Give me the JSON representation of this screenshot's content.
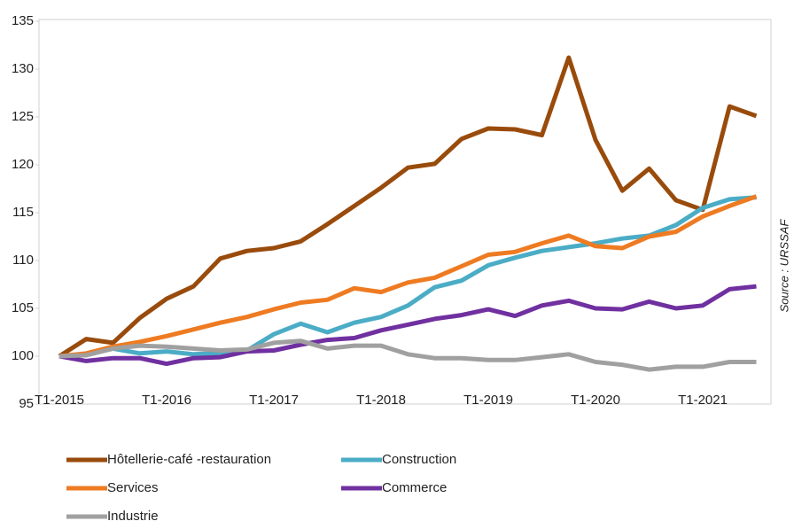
{
  "chart_data": {
    "type": "line",
    "categories": [
      "T1-2015",
      null,
      null,
      null,
      "T1-2016",
      null,
      null,
      null,
      "T1-2017",
      null,
      null,
      null,
      "T1-2018",
      null,
      null,
      null,
      "T1-2019",
      null,
      null,
      null,
      "T1-2020",
      null,
      null,
      null,
      "T1-2021",
      null,
      null
    ],
    "series": [
      {
        "name": "Hôtellerie-café -restauration",
        "color": "#994b0c",
        "values": [
          100,
          101.8,
          101.4,
          104,
          106,
          107.3,
          110.2,
          111,
          111.3,
          112,
          113.8,
          115.7,
          117.6,
          119.7,
          120.1,
          122.7,
          123.8,
          123.7,
          123.1,
          131.2,
          122.6,
          117.3,
          119.6,
          116.3,
          115.3,
          126.1,
          125.1
        ]
      },
      {
        "name": "Construction",
        "color": "#4bacc6",
        "values": [
          100,
          100.2,
          100.8,
          100.3,
          100.5,
          100.2,
          100.3,
          100.6,
          102.3,
          103.4,
          102.5,
          103.5,
          104.1,
          105.3,
          107.2,
          107.9,
          109.5,
          110.3,
          111,
          111.4,
          111.8,
          112.3,
          112.6,
          113.7,
          115.5,
          116.4,
          116.6
        ]
      },
      {
        "name": "Services",
        "color": "#ee7b22",
        "values": [
          100,
          100.3,
          101,
          101.5,
          102.1,
          102.8,
          103.5,
          104.1,
          104.9,
          105.6,
          105.9,
          107.1,
          106.7,
          107.7,
          108.2,
          109.4,
          110.6,
          110.9,
          111.8,
          112.6,
          111.5,
          111.3,
          112.5,
          113,
          114.6,
          115.7,
          116.7
        ]
      },
      {
        "name": "Commerce",
        "color": "#7030a0",
        "values": [
          100,
          99.5,
          99.8,
          99.8,
          99.2,
          99.8,
          99.9,
          100.5,
          100.6,
          101.2,
          101.7,
          101.9,
          102.7,
          103.3,
          103.9,
          104.3,
          104.9,
          104.2,
          105.3,
          105.8,
          105,
          104.9,
          105.7,
          105,
          105.3,
          107,
          107.3
        ]
      },
      {
        "name": "Industrie",
        "color": "#a0a0a0",
        "values": [
          100,
          100.1,
          100.8,
          101.1,
          101,
          100.8,
          100.6,
          100.7,
          101.4,
          101.6,
          100.8,
          101.1,
          101.1,
          100.2,
          99.8,
          99.8,
          99.6,
          99.6,
          99.9,
          100.2,
          99.4,
          99.1,
          98.6,
          98.9,
          98.9,
          99.4,
          99.4
        ]
      }
    ],
    "ylim": [
      95,
      135
    ],
    "yticks": [
      95,
      100,
      105,
      110,
      115,
      120,
      125,
      130,
      135
    ],
    "source": "Source : URSSAF"
  }
}
